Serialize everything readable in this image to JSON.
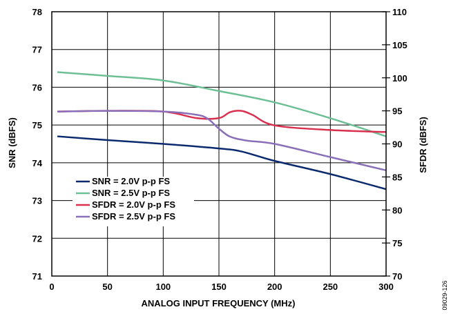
{
  "figure_id": "09029-126",
  "chart_data": {
    "type": "line",
    "xlabel": "ANALOG INPUT FREQUENCY (MHz)",
    "ylabel_left": "SNR (dBFS)",
    "ylabel_right": "SFDR (dBFS)",
    "xlim": [
      0,
      300
    ],
    "ylim_left": [
      71,
      78
    ],
    "ylim_right": [
      70,
      110
    ],
    "x_ticks": [
      0,
      50,
      100,
      150,
      200,
      250,
      300
    ],
    "y_left_ticks": [
      71,
      72,
      73,
      74,
      75,
      76,
      77,
      78
    ],
    "y_right_ticks": [
      70,
      75,
      80,
      85,
      90,
      95,
      100,
      105,
      110
    ],
    "grid": true,
    "legend_position": "bottom-left",
    "series": [
      {
        "name": "SNR = 2.0V p-p FS",
        "axis": "left",
        "color": "#0b2a6e",
        "x": [
          5,
          50,
          100,
          150,
          170,
          200,
          250,
          300
        ],
        "y": [
          74.7,
          74.6,
          74.5,
          74.38,
          74.3,
          74.05,
          73.7,
          73.3
        ]
      },
      {
        "name": "SNR = 2.5V p-p FS",
        "axis": "left",
        "color": "#6dbf94",
        "x": [
          5,
          50,
          100,
          150,
          200,
          250,
          300
        ],
        "y": [
          76.4,
          76.3,
          76.18,
          75.9,
          75.6,
          75.18,
          74.7
        ]
      },
      {
        "name": "SFDR = 2.0V p-p FS",
        "axis": "right",
        "color": "#d9304f",
        "x": [
          5,
          50,
          100,
          130,
          150,
          160,
          170,
          180,
          200,
          250,
          300
        ],
        "y": [
          94.9,
          95.0,
          94.9,
          93.9,
          93.9,
          94.8,
          95.0,
          94.4,
          92.8,
          92.1,
          91.8
        ]
      },
      {
        "name": "SFDR = 2.5V p-p FS",
        "axis": "right",
        "color": "#8a6fb8",
        "x": [
          5,
          50,
          100,
          130,
          140,
          150,
          160,
          175,
          200,
          250,
          300
        ],
        "y": [
          94.9,
          95.0,
          94.9,
          94.4,
          93.8,
          92.3,
          91.1,
          90.5,
          90.0,
          88.0,
          86.0
        ]
      }
    ]
  }
}
